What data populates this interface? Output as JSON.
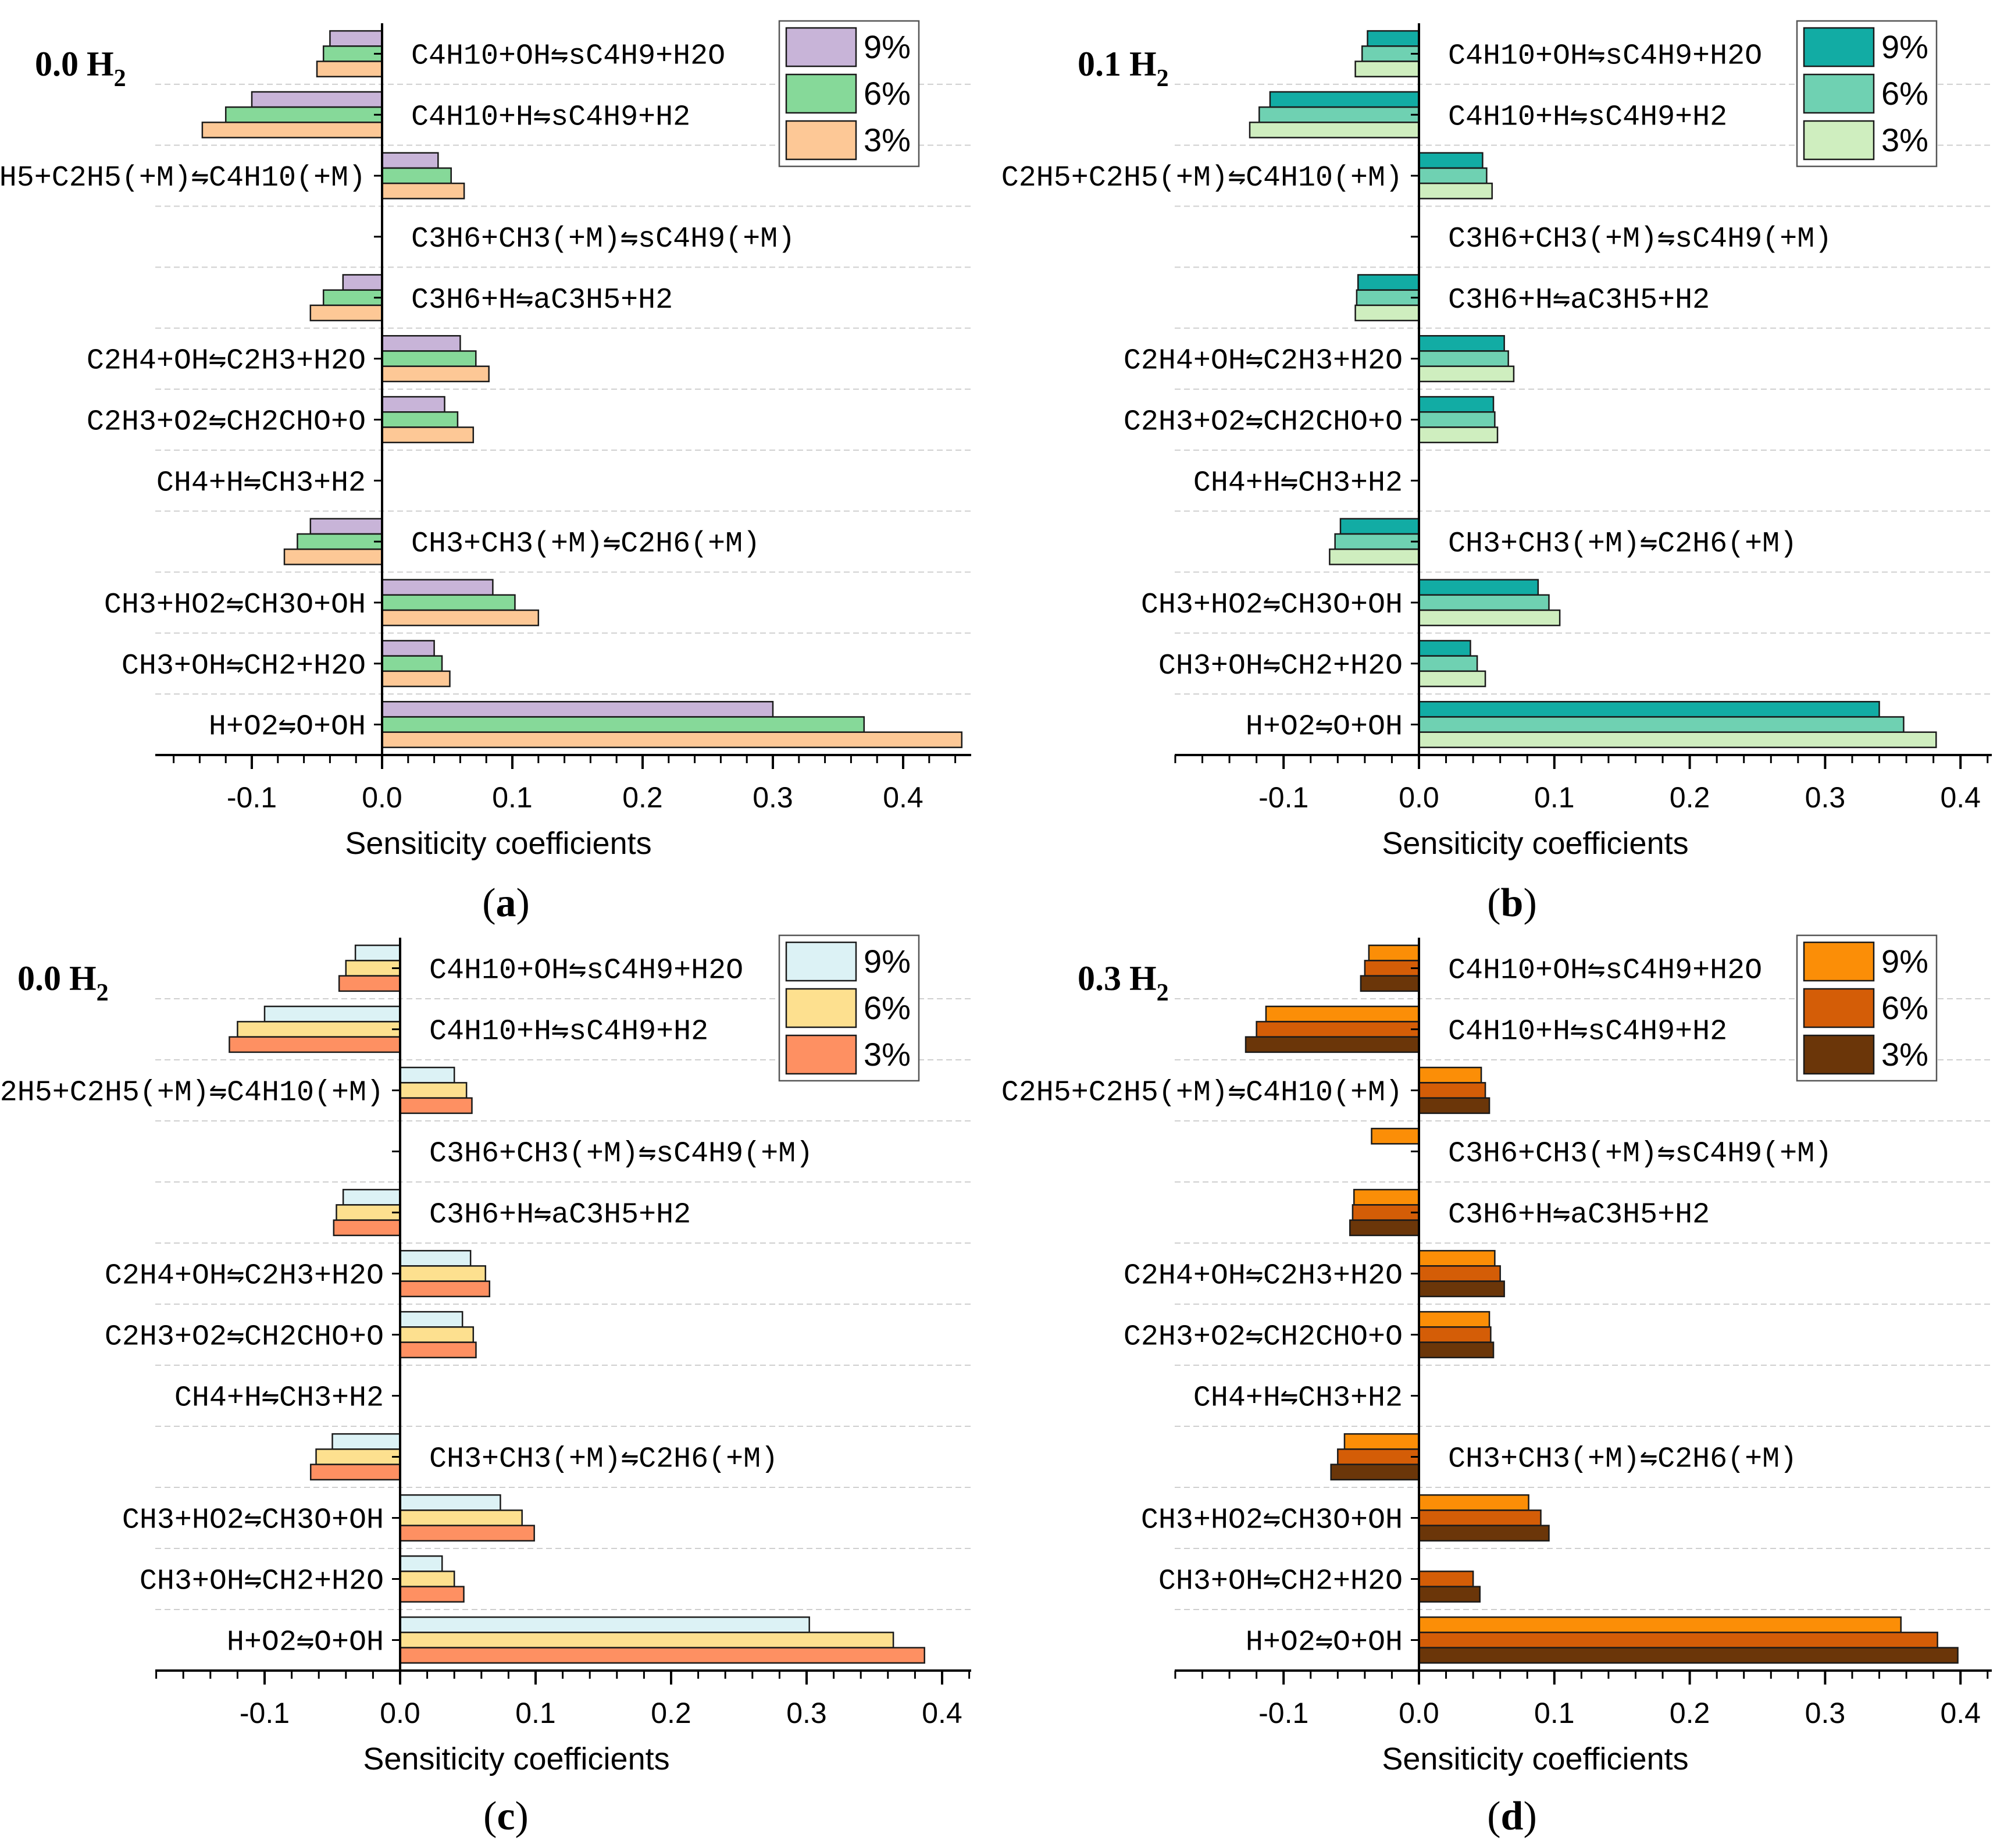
{
  "reactions": [
    "C4H10+OH⇋sC4H9+H2O",
    "C4H10+H⇋sC4H9+H2",
    "C2H5+C2H5(+M)⇋C4H10(+M)",
    "C3H6+CH3(+M)⇋sC4H9(+M)",
    "C3H6+H⇋aC3H5+H2",
    "C2H4+OH⇋C2H3+H2O",
    "C2H3+O2⇋CH2CHO+O",
    "CH4+H⇋CH3+H2",
    "CH3+CH3(+M)⇋C2H6(+M)",
    "CH3+HO2⇋CH3O+OH",
    "CH3+OH⇋CH2+H2O",
    "H+O2⇋O+OH"
  ],
  "chart_data": [
    {
      "panel": "a",
      "type": "bar",
      "orientation": "horizontal",
      "h2_label": {
        "value": "0.0",
        "species": "H",
        "subscript": "2"
      },
      "xlabel": "Sensiticity coefficients",
      "xlim": [
        -0.18,
        0.45
      ],
      "xticks": [
        "-0.1",
        "0.0",
        "0.1",
        "0.2",
        "0.3",
        "0.4"
      ],
      "series": [
        {
          "name": "9%",
          "color": "#c8b4d8",
          "values": [
            -0.04,
            -0.1,
            0.043,
            0,
            -0.03,
            0.06,
            0.048,
            0,
            -0.055,
            0.085,
            0.04,
            0.3
          ]
        },
        {
          "name": "6%",
          "color": "#86d999",
          "values": [
            -0.045,
            -0.12,
            0.053,
            0,
            -0.045,
            0.072,
            0.058,
            0,
            -0.065,
            0.102,
            0.046,
            0.37
          ]
        },
        {
          "name": "3%",
          "color": "#fdc896",
          "values": [
            -0.05,
            -0.138,
            0.063,
            0,
            -0.055,
            0.082,
            0.07,
            0,
            -0.075,
            0.12,
            0.052,
            0.445
          ]
        }
      ]
    },
    {
      "panel": "b",
      "type": "bar",
      "orientation": "horizontal",
      "h2_label": {
        "value": "0.1",
        "species": "H",
        "subscript": "2"
      },
      "xlabel": "Sensiticity coefficients",
      "xlim": [
        -0.18,
        0.42
      ],
      "xticks": [
        "-0.1",
        "0.0",
        "0.1",
        "0.2",
        "0.3",
        "0.4"
      ],
      "series": [
        {
          "name": "9%",
          "color": "#12aca4",
          "values": [
            -0.038,
            -0.11,
            0.047,
            0,
            -0.045,
            0.063,
            0.055,
            0,
            -0.058,
            0.088,
            0.038,
            0.34
          ]
        },
        {
          "name": "6%",
          "color": "#6fd1b2",
          "values": [
            -0.042,
            -0.118,
            0.05,
            0,
            -0.046,
            0.066,
            0.056,
            0,
            -0.062,
            0.096,
            0.043,
            0.358
          ]
        },
        {
          "name": "3%",
          "color": "#cfeebf",
          "values": [
            -0.047,
            -0.125,
            0.054,
            0,
            -0.047,
            0.07,
            0.058,
            0,
            -0.066,
            0.104,
            0.049,
            0.382
          ]
        }
      ]
    },
    {
      "panel": "c",
      "type": "bar",
      "orientation": "horizontal",
      "h2_label": {
        "value": "0.0",
        "species": "H",
        "subscript": "2"
      },
      "xlabel": "Sensiticity coefficients",
      "xlim": [
        -0.18,
        0.42
      ],
      "xticks": [
        "-0.1",
        "0.0",
        "0.1",
        "0.2",
        "0.3",
        "0.4"
      ],
      "series": [
        {
          "name": "9%",
          "color": "#dcf2f5",
          "values": [
            -0.033,
            -0.1,
            0.04,
            0,
            -0.042,
            0.052,
            0.046,
            0,
            -0.05,
            0.074,
            0.031,
            0.302
          ]
        },
        {
          "name": "6%",
          "color": "#fde08f",
          "values": [
            -0.04,
            -0.12,
            0.049,
            0,
            -0.047,
            0.063,
            0.054,
            0,
            -0.062,
            0.09,
            0.04,
            0.364
          ]
        },
        {
          "name": "3%",
          "color": "#fe9062",
          "values": [
            -0.045,
            -0.126,
            0.053,
            0,
            -0.049,
            0.066,
            0.056,
            0,
            -0.066,
            0.099,
            0.047,
            0.387
          ]
        }
      ]
    },
    {
      "panel": "d",
      "type": "bar",
      "orientation": "horizontal",
      "h2_label": {
        "value": "0.3",
        "species": "H",
        "subscript": "2"
      },
      "xlabel": "Sensiticity coefficients",
      "xlim": [
        -0.18,
        0.42
      ],
      "xticks": [
        "-0.1",
        "0.0",
        "0.1",
        "0.2",
        "0.3",
        "0.4"
      ],
      "series": [
        {
          "name": "9%",
          "color": "#fb8e07",
          "values": [
            -0.037,
            -0.113,
            0.046,
            -0.035,
            -0.048,
            0.056,
            0.052,
            0,
            -0.055,
            0.081,
            0,
            0.356
          ]
        },
        {
          "name": "6%",
          "color": "#d45d07",
          "values": [
            -0.04,
            -0.12,
            0.049,
            0,
            -0.049,
            0.06,
            0.053,
            0,
            -0.06,
            0.09,
            0.04,
            0.383
          ]
        },
        {
          "name": "3%",
          "color": "#6b3609",
          "values": [
            -0.043,
            -0.128,
            0.052,
            0,
            -0.051,
            0.063,
            0.055,
            0,
            -0.065,
            0.096,
            0.045,
            0.398
          ]
        }
      ]
    }
  ]
}
